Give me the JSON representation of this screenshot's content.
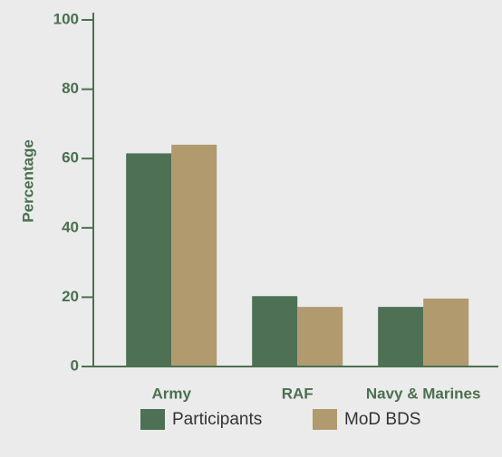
{
  "chart_data": {
    "type": "bar",
    "y_label": "Percentage",
    "categories": [
      "Army",
      "RAF",
      "Navy & Marines"
    ],
    "series": [
      {
        "name": "Participants",
        "color": "#4e7155",
        "values": [
          61.5,
          20.3,
          17.2
        ]
      },
      {
        "name": "MoD BDS",
        "color": "#b09a6e",
        "values": [
          64,
          17.2,
          19.6
        ]
      }
    ],
    "ylim": [
      0,
      100
    ],
    "yticks": [
      0,
      20,
      40,
      60,
      80,
      100
    ],
    "axis_color": "#4a7050",
    "legend": "bottom"
  }
}
